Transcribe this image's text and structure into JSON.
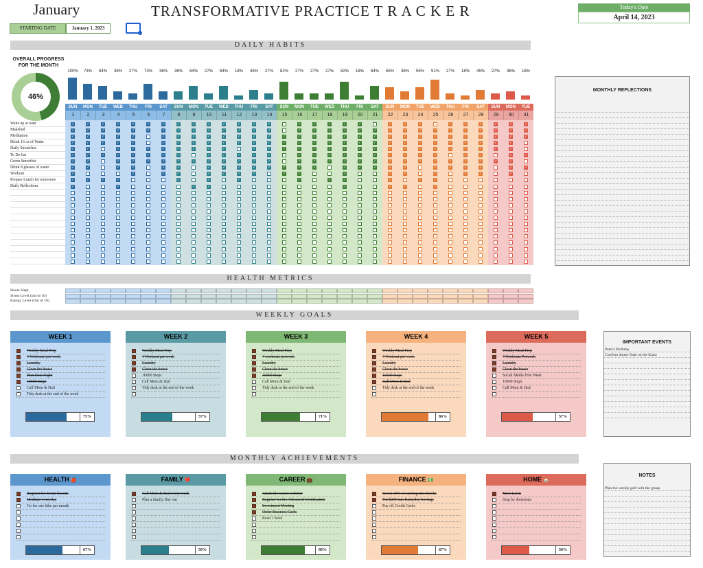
{
  "header": {
    "month": "January",
    "title": "TRANSFORMATIVE PRACTICE  T R A C K E R",
    "starting_date_label": "STARTING DATE",
    "starting_date": "January 1, 2023",
    "today_label": "Today's Date",
    "today_value": "April 14, 2023"
  },
  "sections": {
    "daily_habits": "DAILY HABITS",
    "health_metrics": "HEALTH METRICS",
    "weekly_goals": "WEEKLY GOALS",
    "monthly_achievements": "MONTHLY ACHIEVEMENTS"
  },
  "overall": {
    "label": "OVERALL PROGRESS FOR THE MONTH",
    "value": "46%",
    "fraction": 0.46
  },
  "days": {
    "names": [
      "SUN",
      "MON",
      "TUE",
      "WED",
      "THU",
      "FRI",
      "SAT",
      "SUN",
      "MON",
      "TUE",
      "WED",
      "THU",
      "FRI",
      "SAT",
      "SUN",
      "MON",
      "TUE",
      "WED",
      "THU",
      "FRI",
      "SAT",
      "SUN",
      "MON",
      "TUE",
      "WED",
      "THU",
      "FRI",
      "SAT",
      "SUN",
      "MON",
      "TUE"
    ],
    "numbers": [
      "1",
      "2",
      "3",
      "4",
      "5",
      "6",
      "7",
      "8",
      "9",
      "10",
      "11",
      "12",
      "13",
      "14",
      "15",
      "16",
      "17",
      "18",
      "19",
      "20",
      "21",
      "22",
      "23",
      "24",
      "25",
      "26",
      "27",
      "28",
      "29",
      "30",
      "31"
    ],
    "percents": [
      "100%",
      "73%",
      "64%",
      "36%",
      "27%",
      "73%",
      "36%",
      "36%",
      "64%",
      "27%",
      "64%",
      "18%",
      "45%",
      "27%",
      "82%",
      "27%",
      "27%",
      "27%",
      "82%",
      "18%",
      "64%",
      "55%",
      "36%",
      "55%",
      "91%",
      "27%",
      "18%",
      "45%",
      "27%",
      "36%",
      "18%"
    ],
    "values": [
      100,
      73,
      64,
      36,
      27,
      73,
      36,
      36,
      64,
      27,
      64,
      18,
      45,
      27,
      82,
      27,
      27,
      27,
      82,
      18,
      64,
      55,
      36,
      55,
      91,
      27,
      18,
      45,
      27,
      36,
      18
    ]
  },
  "week_colors": {
    "w1": {
      "bar": "#2c6a9e",
      "head": "#2c6a9e",
      "bg": "#c2daf3",
      "headtxt": "#fff"
    },
    "w2": {
      "bar": "#2b7f8c",
      "head": "#3b7d8a",
      "bg": "#c8dde2",
      "headtxt": "#fff"
    },
    "w3": {
      "bar": "#3e7d34",
      "head": "#3e7d34",
      "bg": "#d3e8c8",
      "headtxt": "#fff"
    },
    "w4": {
      "bar": "#e07a35",
      "head": "#e07a35",
      "bg": "#fbd9bd",
      "headtxt": "#fff"
    },
    "w5": {
      "bar": "#dd5a48",
      "head": "#d35848",
      "bg": "#f5c9c7",
      "headtxt": "#fff"
    }
  },
  "habits": [
    "Wake up at 6am",
    "Makebed",
    "Meditation",
    "Drink 16 oz of Water",
    "Daily Streatches",
    "To Do list",
    "Green Smoothie",
    "Drink 8 glasses of water",
    "Workout",
    "Prepare Lunch for tomorrow",
    "Daily Reflections"
  ],
  "checks": [
    "1111111111111101111101110111111",
    "1111111111111101111111111111111",
    "1111101111111111111111111111111",
    "1111101111111111111111111111110",
    "1101111111101111111111111111110",
    "1111111101111101111111111011011",
    "1101111111111101111111111111110",
    "1101101101111111101111101111011",
    "1000101101111011001001101011010",
    "1111000101010001011001011000000",
    "1001000011000000001001101000000"
  ],
  "metrics": [
    "Hours Slept",
    "Stress Level (out of 10)",
    "Energy Level (Out of 10)"
  ],
  "weekly_goals": [
    {
      "title": "WEEK 1",
      "items": [
        {
          "t": "Weekly Meal Prep",
          "d": true
        },
        {
          "t": "4 Workouts per week",
          "d": true
        },
        {
          "t": "Laundry",
          "d": true
        },
        {
          "t": "Clean the house",
          "d": true
        },
        {
          "t": "Plan Date Night",
          "d": true
        },
        {
          "t": "10000 Steps",
          "d": true
        },
        {
          "t": "Call Mom & Dad",
          "d": false
        },
        {
          "t": "Tidy desk at the end of the week",
          "d": false
        }
      ],
      "pct": "75%",
      "frac": 0.75
    },
    {
      "title": "WEEK 2",
      "items": [
        {
          "t": "Weekly Meal Prep",
          "d": true
        },
        {
          "t": "4 Workout per week",
          "d": true
        },
        {
          "t": "Laundry",
          "d": true
        },
        {
          "t": "Clean the house",
          "d": true
        },
        {
          "t": "10000 Steps",
          "d": false
        },
        {
          "t": "Call Mom & Dad",
          "d": false
        },
        {
          "t": "Tidy desk at the end of the week",
          "d": false
        },
        {
          "t": "",
          "d": false
        }
      ],
      "pct": "57%",
      "frac": 0.57
    },
    {
      "title": "WEEK 3",
      "items": [
        {
          "t": "Weekly Meal Prep",
          "d": true
        },
        {
          "t": "4 workouts perweek",
          "d": true
        },
        {
          "t": "Laundry",
          "d": true
        },
        {
          "t": "Clean the house",
          "d": true
        },
        {
          "t": "10000 Steps",
          "d": true
        },
        {
          "t": "Call Mom & Dad",
          "d": false
        },
        {
          "t": "Tidy desk at the end of the week",
          "d": false
        },
        {
          "t": "",
          "d": false
        }
      ],
      "pct": "71%",
      "frac": 0.71
    },
    {
      "title": "WEEK 4",
      "items": [
        {
          "t": "Weekly Meal Prep",
          "d": true
        },
        {
          "t": "4 Workout per week",
          "d": true
        },
        {
          "t": "Laundry",
          "d": true
        },
        {
          "t": "Clean the house",
          "d": true
        },
        {
          "t": "10000 Steps",
          "d": true
        },
        {
          "t": "Call Mom & Dad",
          "d": true
        },
        {
          "t": "Tidy desk at the end of the week",
          "d": false
        },
        {
          "t": "",
          "d": false
        }
      ],
      "pct": "86%",
      "frac": 0.86
    },
    {
      "title": "WEEK 5",
      "items": [
        {
          "t": "Weekly Meal Prep",
          "d": true
        },
        {
          "t": "4 Workouts Perweek",
          "d": true
        },
        {
          "t": "Laundry",
          "d": true
        },
        {
          "t": "Clean the house",
          "d": true
        },
        {
          "t": "Social Media Free Week",
          "d": false
        },
        {
          "t": "10000 Steps",
          "d": false
        },
        {
          "t": "Call Mom & Dad",
          "d": false
        },
        {
          "t": "",
          "d": false
        }
      ],
      "pct": "57%",
      "frac": 0.57
    }
  ],
  "achievements": [
    {
      "title": "HEALTH",
      "emoji": "🍎",
      "items": [
        {
          "t": "Register for Swim lessons",
          "d": true
        },
        {
          "t": "Meditate everyday",
          "d": true
        },
        {
          "t": "Go for one hike per month",
          "d": false
        },
        {
          "t": "",
          "d": false
        },
        {
          "t": "",
          "d": false
        },
        {
          "t": "",
          "d": false
        },
        {
          "t": "",
          "d": false
        },
        {
          "t": "",
          "d": false
        }
      ],
      "pct": "67%",
      "frac": 0.67
    },
    {
      "title": "FAMILY",
      "emoji": "❤️",
      "items": [
        {
          "t": "Call Mom & Dad every week",
          "d": true
        },
        {
          "t": "Plan a family Day out",
          "d": false
        },
        {
          "t": "",
          "d": false
        },
        {
          "t": "",
          "d": false
        },
        {
          "t": "",
          "d": false
        },
        {
          "t": "",
          "d": false
        },
        {
          "t": "",
          "d": false
        },
        {
          "t": "",
          "d": false
        }
      ],
      "pct": "50%",
      "frac": 0.5
    },
    {
      "title": "CAREER",
      "emoji": "💼",
      "items": [
        {
          "t": "Attain the career webnier",
          "d": true
        },
        {
          "t": "Register for the Advanced Certification",
          "d": true
        },
        {
          "t": "Investment Meeting",
          "d": true
        },
        {
          "t": "Order Business Cards",
          "d": true
        },
        {
          "t": "Read 1 book",
          "d": false
        },
        {
          "t": "",
          "d": false
        },
        {
          "t": "",
          "d": false
        },
        {
          "t": "",
          "d": false
        }
      ],
      "pct": "80%",
      "frac": 0.8
    },
    {
      "title": "FINANCE",
      "emoji": "💵",
      "items": [
        {
          "t": "Invest 10% of earning into Stocks",
          "d": true
        },
        {
          "t": "Put $200 into Rainyday Savings",
          "d": true
        },
        {
          "t": "Pay off Credit Cards",
          "d": false
        },
        {
          "t": "",
          "d": false
        },
        {
          "t": "",
          "d": false
        },
        {
          "t": "",
          "d": false
        },
        {
          "t": "",
          "d": false
        },
        {
          "t": "",
          "d": false
        }
      ],
      "pct": "67%",
      "frac": 0.67
    },
    {
      "title": "HOME",
      "emoji": "🏠",
      "items": [
        {
          "t": "Mow Lawn",
          "d": true
        },
        {
          "t": "Stop by donations",
          "d": false
        },
        {
          "t": "",
          "d": false
        },
        {
          "t": "",
          "d": false
        },
        {
          "t": "",
          "d": false
        },
        {
          "t": "",
          "d": false
        },
        {
          "t": "",
          "d": false
        },
        {
          "t": "",
          "d": false
        }
      ],
      "pct": "50%",
      "frac": 0.5
    }
  ],
  "side": {
    "reflections_title": "MONTHLY REFLECTIONS",
    "events_title": "IMPORTANT EVENTS",
    "events": [
      "Peter's Birthday",
      "Confirm dinner Date on the Kiara",
      "",
      "",
      "",
      "",
      "",
      "",
      "",
      "",
      "",
      "",
      ""
    ],
    "notes_title": "NOTES",
    "notes": [
      "Plan the weekly golf with the group",
      "",
      "",
      "",
      "",
      "",
      "",
      "",
      "",
      "",
      "",
      "",
      ""
    ]
  }
}
